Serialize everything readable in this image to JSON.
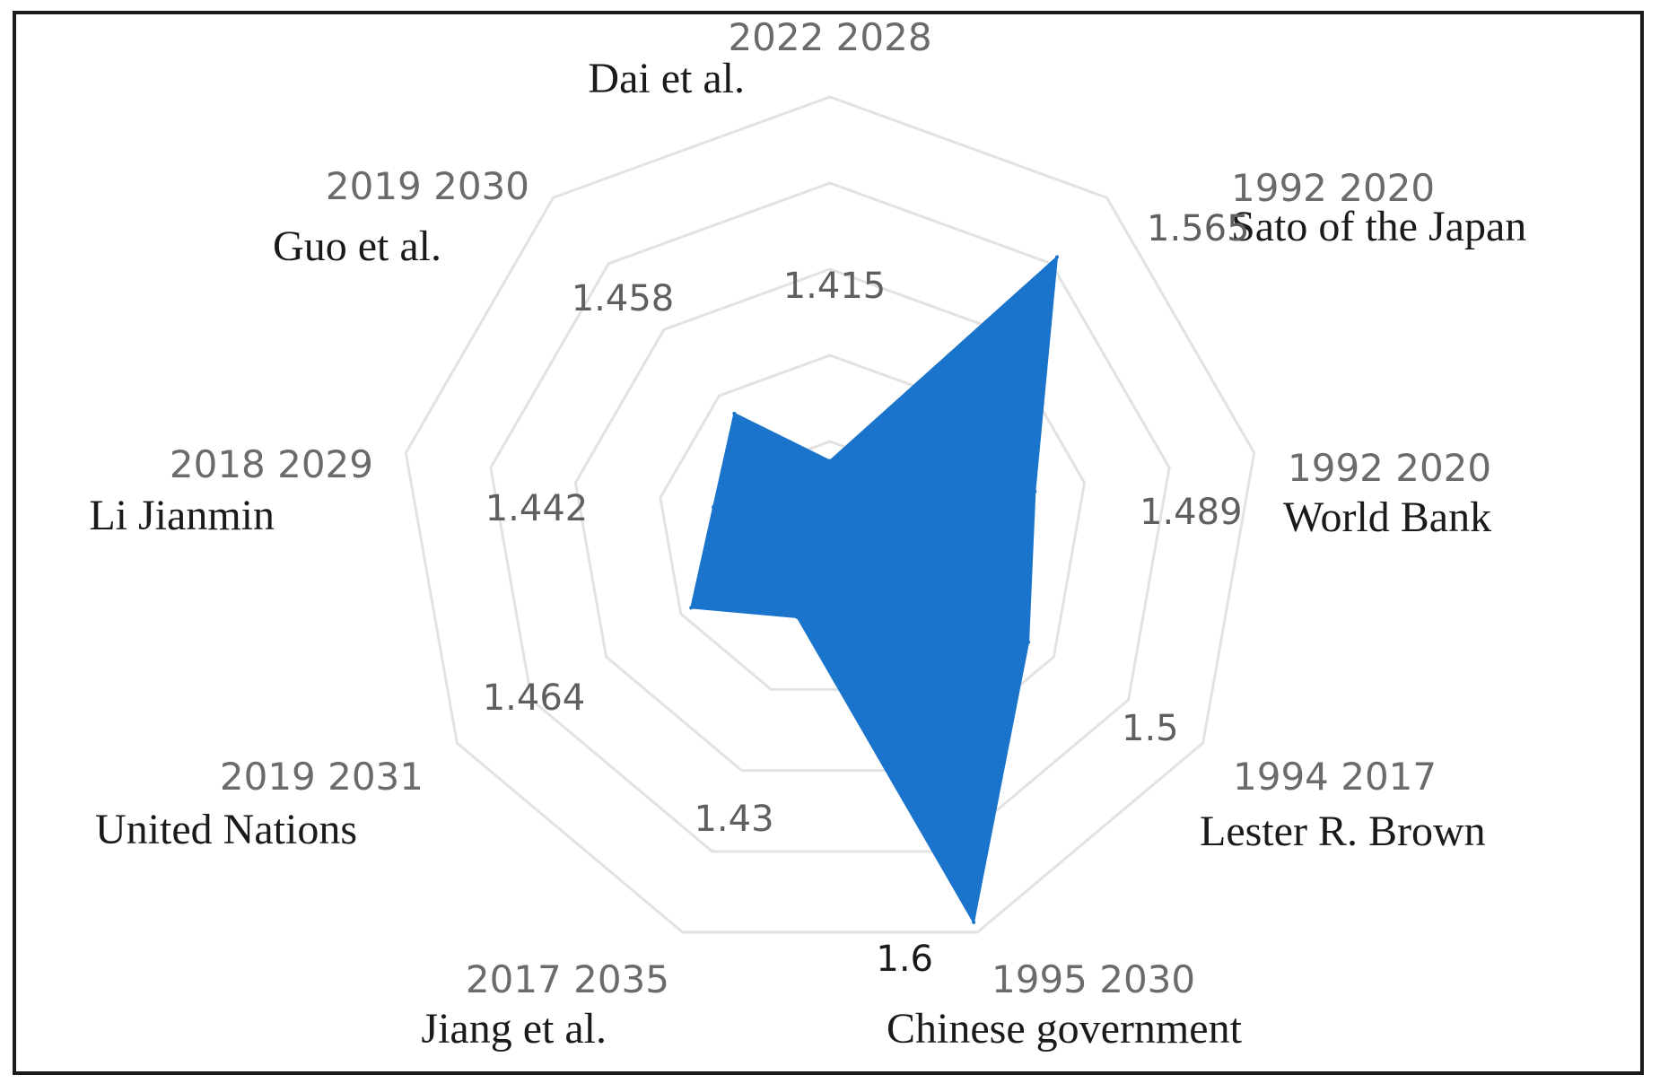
{
  "chart_data": {
    "type": "radar",
    "title": "",
    "grid": true,
    "legend": "none",
    "fill_color": "#1b74cc",
    "grid_color": "#e2e2e2",
    "rmin": 1.38,
    "rmax": 1.6,
    "rings": 5,
    "categories": [
      {
        "name": "Dai et al.",
        "years": "2022 2028",
        "value": 1.415,
        "value_label": "1.415"
      },
      {
        "name": "Sato of the Japan",
        "years": "1992 2020",
        "value": 1.565,
        "value_label": "1.565"
      },
      {
        "name": "World Bank",
        "years": "1992 2020",
        "value": 1.489,
        "value_label": "1.489"
      },
      {
        "name": "Lester R. Brown",
        "years": "1994 2017",
        "value": 1.5,
        "value_label": "1.5"
      },
      {
        "name": "Chinese government",
        "years": "1995 2030",
        "value": 1.6,
        "value_label": "1.6"
      },
      {
        "name": "Jiang et al.",
        "years": "2017 2035",
        "value": 1.43,
        "value_label": "1.43"
      },
      {
        "name": "United Nations",
        "years": "2019 2031",
        "value": 1.464,
        "value_label": "1.464"
      },
      {
        "name": "Li Jianmin",
        "years": "2018 2029",
        "value": 1.442,
        "value_label": "1.442"
      },
      {
        "name": "Guo et al.",
        "years": "2019 2030",
        "value": 1.458,
        "value_label": "1.458"
      }
    ]
  }
}
